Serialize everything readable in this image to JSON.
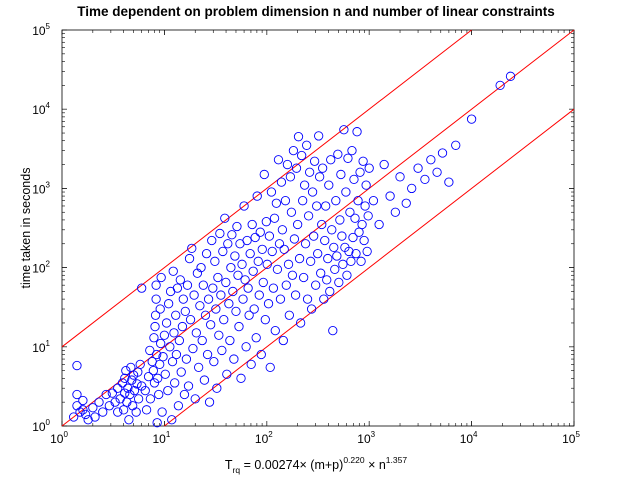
{
  "chart_data": {
    "type": "scatter",
    "title": "Time dependent on problem dimension n and number of linear constraints",
    "ylabel": "time taken in seconds",
    "xlabel": {
      "base": "T",
      "subscript": "rq",
      "formula_part1": " = 0.00274× (m+p)",
      "exponent1": "0.220",
      "formula_part2": " × n",
      "exponent2": "1.357"
    },
    "x_scale": "log",
    "y_scale": "log",
    "xlim": [
      1,
      100000
    ],
    "ylim": [
      1,
      100000
    ],
    "x_ticks": [
      {
        "base": "10",
        "exp": "0",
        "value": 1
      },
      {
        "base": "10",
        "exp": "1",
        "value": 10
      },
      {
        "base": "10",
        "exp": "2",
        "value": 100
      },
      {
        "base": "10",
        "exp": "3",
        "value": 1000
      },
      {
        "base": "10",
        "exp": "4",
        "value": 10000
      },
      {
        "base": "10",
        "exp": "5",
        "value": 100000
      }
    ],
    "y_ticks": [
      {
        "base": "10",
        "exp": "0",
        "value": 1
      },
      {
        "base": "10",
        "exp": "1",
        "value": 10
      },
      {
        "base": "10",
        "exp": "2",
        "value": 100
      },
      {
        "base": "10",
        "exp": "3",
        "value": 1000
      },
      {
        "base": "10",
        "exp": "4",
        "value": 10000
      },
      {
        "base": "10",
        "exp": "5",
        "value": 100000
      }
    ],
    "grid": false,
    "marker_color": "#0000ff",
    "line_color": "#ff0000",
    "reference_lines": [
      {
        "multiplier": 10
      },
      {
        "multiplier": 1
      },
      {
        "multiplier": 0.1
      }
    ],
    "points": [
      [
        1.3,
        1.3
      ],
      [
        1.4,
        1.8
      ],
      [
        1.4,
        2.5
      ],
      [
        1.4,
        5.8
      ],
      [
        1.5,
        1.5
      ],
      [
        1.6,
        1.6
      ],
      [
        1.6,
        2.1
      ],
      [
        1.7,
        1.4
      ],
      [
        1.8,
        1.2
      ],
      [
        2.0,
        1.7
      ],
      [
        2.1,
        1.3
      ],
      [
        2.3,
        2.0
      ],
      [
        2.5,
        1.5
      ],
      [
        2.7,
        2.5
      ],
      [
        2.9,
        1.8
      ],
      [
        3.1,
        2.6
      ],
      [
        3.3,
        2.0
      ],
      [
        3.5,
        3.0
      ],
      [
        3.5,
        1.5
      ],
      [
        3.7,
        2.2
      ],
      [
        3.9,
        3.5
      ],
      [
        4.0,
        1.6
      ],
      [
        4.1,
        2.6
      ],
      [
        4.1,
        4.0
      ],
      [
        4.2,
        5.0
      ],
      [
        4.3,
        2.0
      ],
      [
        4.4,
        3.0
      ],
      [
        4.5,
        1.2
      ],
      [
        4.6,
        2.5
      ],
      [
        4.7,
        5.5
      ],
      [
        4.8,
        3.8
      ],
      [
        4.9,
        1.8
      ],
      [
        5.0,
        4.4
      ],
      [
        5.1,
        2.8
      ],
      [
        5.3,
        1.5
      ],
      [
        5.4,
        3.4
      ],
      [
        5.5,
        4.8
      ],
      [
        5.6,
        2.2
      ],
      [
        5.8,
        6.0
      ],
      [
        6.0,
        3.2
      ],
      [
        6.0,
        55
      ],
      [
        6.5,
        2.8
      ],
      [
        6.7,
        1.6
      ],
      [
        7.0,
        4.2
      ],
      [
        7.2,
        9.0
      ],
      [
        7.3,
        2.2
      ],
      [
        7.6,
        6.5
      ],
      [
        7.8,
        5.0
      ],
      [
        7.9,
        13
      ],
      [
        8.0,
        3.5
      ],
      [
        8.1,
        18
      ],
      [
        8.2,
        25
      ],
      [
        8.3,
        40
      ],
      [
        8.3,
        60
      ],
      [
        8.4,
        8.0
      ],
      [
        8.5,
        1.1
      ],
      [
        8.6,
        4.0
      ],
      [
        8.8,
        2.5
      ],
      [
        9.0,
        6.0
      ],
      [
        9.1,
        30
      ],
      [
        9.2,
        11
      ],
      [
        9.3,
        75
      ],
      [
        9.5,
        1.5
      ],
      [
        9.7,
        7.5
      ],
      [
        10.0,
        14
      ],
      [
        10.2,
        4.5
      ],
      [
        10.5,
        20
      ],
      [
        10.8,
        2.8
      ],
      [
        11.0,
        35
      ],
      [
        11.3,
        10
      ],
      [
        11.5,
        50
      ],
      [
        11.8,
        1.2
      ],
      [
        12.0,
        6.5
      ],
      [
        12.2,
        90
      ],
      [
        12.4,
        15
      ],
      [
        12.6,
        3.5
      ],
      [
        12.9,
        25
      ],
      [
        13.1,
        8
      ],
      [
        13.4,
        55
      ],
      [
        13.7,
        1.8
      ],
      [
        14.0,
        12
      ],
      [
        14.3,
        70
      ],
      [
        14.6,
        4.8
      ],
      [
        15.0,
        18
      ],
      [
        15.3,
        40
      ],
      [
        15.7,
        2.5
      ],
      [
        16.0,
        28
      ],
      [
        16.4,
        7.0
      ],
      [
        16.8,
        60
      ],
      [
        17.2,
        3.2
      ],
      [
        17.6,
        130
      ],
      [
        18.0,
        22
      ],
      [
        18.5,
        175
      ],
      [
        19.0,
        9.5
      ],
      [
        19.5,
        45
      ],
      [
        20.0,
        2.2
      ],
      [
        20.5,
        15
      ],
      [
        21.0,
        85
      ],
      [
        21.6,
        5.5
      ],
      [
        22.2,
        33
      ],
      [
        22.8,
        100
      ],
      [
        23.4,
        12
      ],
      [
        24.0,
        60
      ],
      [
        24.6,
        3.8
      ],
      [
        25.2,
        25
      ],
      [
        25.8,
        150
      ],
      [
        26.4,
        8
      ],
      [
        27.0,
        40
      ],
      [
        27.6,
        2.0
      ],
      [
        28.3,
        19
      ],
      [
        29.0,
        220
      ],
      [
        29.7,
        55
      ],
      [
        30.4,
        6.5
      ],
      [
        31.1,
        120
      ],
      [
        31.8,
        30
      ],
      [
        32.5,
        3.0
      ],
      [
        33.3,
        75
      ],
      [
        34.0,
        14
      ],
      [
        34.8,
        270
      ],
      [
        35.6,
        45
      ],
      [
        36.4,
        9.0
      ],
      [
        37.2,
        160
      ],
      [
        38.0,
        22
      ],
      [
        38.9,
        420
      ],
      [
        39.8,
        65
      ],
      [
        40.7,
        4.5
      ],
      [
        41.6,
        200
      ],
      [
        42.6,
        35
      ],
      [
        43.6,
        12
      ],
      [
        44.6,
        100
      ],
      [
        45.6,
        260
      ],
      [
        46.6,
        50
      ],
      [
        47.7,
        7.0
      ],
      [
        48.8,
        140
      ],
      [
        50.0,
        28
      ],
      [
        51.1,
        330
      ],
      [
        52.3,
        80
      ],
      [
        53.5,
        18
      ],
      [
        54.7,
        200
      ],
      [
        56.0,
        4.0
      ],
      [
        57.3,
        110
      ],
      [
        58.6,
        40
      ],
      [
        60.0,
        600
      ],
      [
        61.4,
        70
      ],
      [
        62.8,
        10
      ],
      [
        64.2,
        220
      ],
      [
        65.7,
        55
      ],
      [
        67.2,
        25
      ],
      [
        68.8,
        150
      ],
      [
        70.4,
        6.0
      ],
      [
        72.0,
        350
      ],
      [
        73.6,
        90
      ],
      [
        75.3,
        30
      ],
      [
        77.0,
        240
      ],
      [
        78.8,
        13
      ],
      [
        80.6,
        800
      ],
      [
        82.5,
        120
      ],
      [
        84.4,
        45
      ],
      [
        86.3,
        280
      ],
      [
        88.3,
        8.0
      ],
      [
        90.3,
        170
      ],
      [
        92.4,
        65
      ],
      [
        94.5,
        1500
      ],
      [
        96.7,
        22
      ],
      [
        98.9,
        380
      ],
      [
        101,
        110
      ],
      [
        104,
        35
      ],
      [
        106,
        250
      ],
      [
        108,
        5.5
      ],
      [
        111,
        900
      ],
      [
        113,
        160
      ],
      [
        116,
        55
      ],
      [
        119,
        420
      ],
      [
        121,
        16
      ],
      [
        124,
        650
      ],
      [
        127,
        95
      ],
      [
        130,
        2300
      ],
      [
        133,
        200
      ],
      [
        136,
        40
      ],
      [
        139,
        1200
      ],
      [
        142,
        300
      ],
      [
        145,
        12
      ],
      [
        148,
        170
      ],
      [
        152,
        700
      ],
      [
        155,
        60
      ],
      [
        159,
        2000
      ],
      [
        163,
        110
      ],
      [
        166,
        25
      ],
      [
        170,
        1400
      ],
      [
        174,
        500
      ],
      [
        178,
        80
      ],
      [
        182,
        3000
      ],
      [
        186,
        230
      ],
      [
        191,
        45
      ],
      [
        195,
        1800
      ],
      [
        200,
        350
      ],
      [
        204,
        4500
      ],
      [
        209,
        130
      ],
      [
        214,
        20
      ],
      [
        219,
        2600
      ],
      [
        224,
        700
      ],
      [
        229,
        75
      ],
      [
        234,
        1100
      ],
      [
        239,
        200
      ],
      [
        245,
        3500
      ],
      [
        250,
        40
      ],
      [
        256,
        450
      ],
      [
        262,
        1600
      ],
      [
        268,
        120
      ],
      [
        274,
        30
      ],
      [
        280,
        900
      ],
      [
        287,
        250
      ],
      [
        293,
        2200
      ],
      [
        300,
        60
      ],
      [
        307,
        600
      ],
      [
        314,
        150
      ],
      [
        321,
        4600
      ],
      [
        328,
        1400
      ],
      [
        336,
        85
      ],
      [
        344,
        350
      ],
      [
        351,
        1800
      ],
      [
        360,
        40
      ],
      [
        368,
        220
      ],
      [
        376,
        600
      ],
      [
        385,
        70
      ],
      [
        394,
        130
      ],
      [
        403,
        1100
      ],
      [
        412,
        50
      ],
      [
        421,
        2300
      ],
      [
        431,
        300
      ],
      [
        441,
        16
      ],
      [
        451,
        180
      ],
      [
        461,
        95
      ],
      [
        472,
        700
      ],
      [
        483,
        140
      ],
      [
        494,
        2700
      ],
      [
        505,
        65
      ],
      [
        517,
        400
      ],
      [
        529,
        1500
      ],
      [
        541,
        250
      ],
      [
        553,
        110
      ],
      [
        566,
        5500
      ],
      [
        579,
        180
      ],
      [
        592,
        900
      ],
      [
        606,
        80
      ],
      [
        620,
        2400
      ],
      [
        634,
        160
      ],
      [
        648,
        500
      ],
      [
        663,
        120
      ],
      [
        679,
        3000
      ],
      [
        694,
        240
      ],
      [
        710,
        1300
      ],
      [
        727,
        420
      ],
      [
        743,
        150
      ],
      [
        761,
        5200
      ],
      [
        778,
        700
      ],
      [
        796,
        280
      ],
      [
        814,
        1600
      ],
      [
        833,
        120
      ],
      [
        852,
        350
      ],
      [
        872,
        2200
      ],
      [
        892,
        220
      ],
      [
        912,
        600
      ],
      [
        933,
        1100
      ],
      [
        955,
        160
      ],
      [
        977,
        450
      ],
      [
        1000,
        1800
      ],
      [
        1100,
        700
      ],
      [
        1250,
        350
      ],
      [
        1400,
        2000
      ],
      [
        1600,
        800
      ],
      [
        1800,
        500
      ],
      [
        2000,
        1400
      ],
      [
        2300,
        650
      ],
      [
        2600,
        1000
      ],
      [
        3000,
        1800
      ],
      [
        3500,
        1300
      ],
      [
        4000,
        2300
      ],
      [
        4600,
        1600
      ],
      [
        5200,
        2800
      ],
      [
        6000,
        1200
      ],
      [
        7000,
        3500
      ],
      [
        10000,
        7500
      ],
      [
        19000,
        20000
      ],
      [
        24000,
        26000
      ]
    ]
  }
}
